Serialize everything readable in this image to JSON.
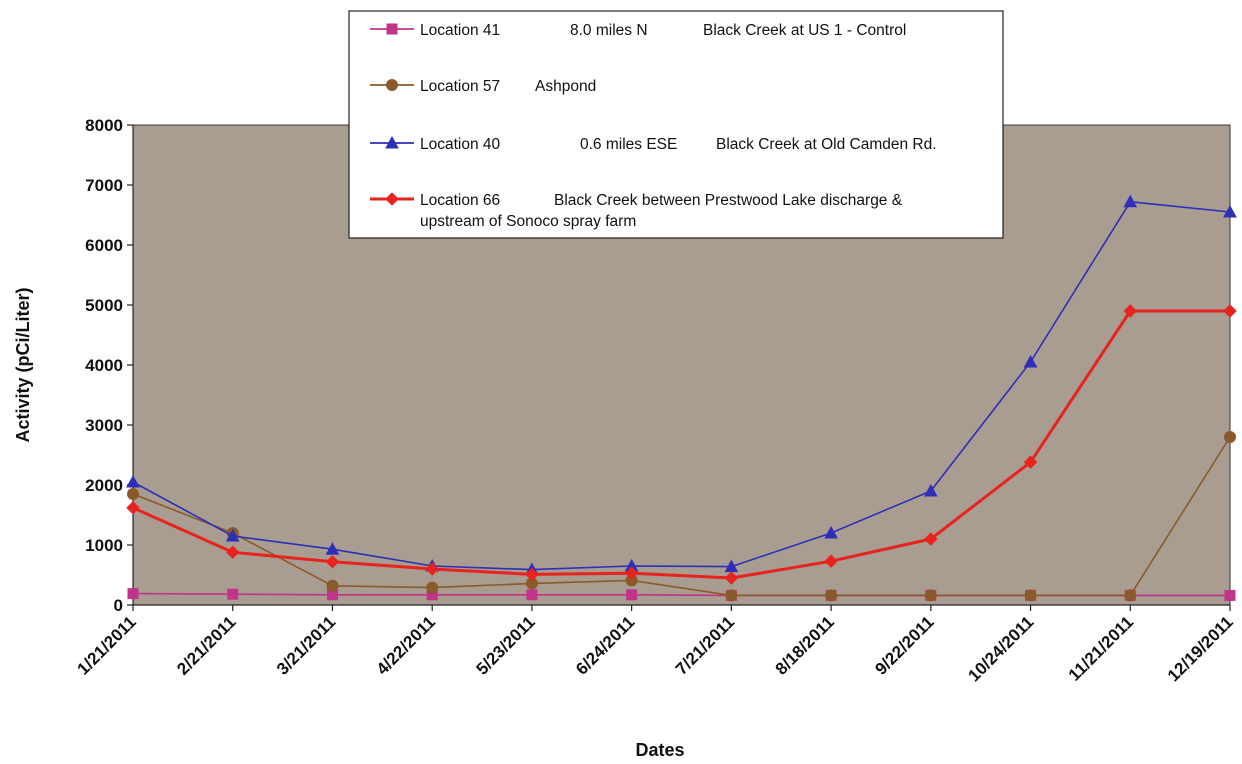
{
  "chart_data": {
    "type": "line",
    "title": "",
    "xlabel": "Dates",
    "ylabel": "Activity (pCi/Liter)",
    "ylim": [
      0,
      8000
    ],
    "yticks": [
      0,
      1000,
      2000,
      3000,
      4000,
      5000,
      6000,
      7000,
      8000
    ],
    "categories": [
      "1/21/2011",
      "2/21/2011",
      "3/21/2011",
      "4/22/2011",
      "5/23/2011",
      "6/24/2011",
      "7/21/2011",
      "8/18/2011",
      "9/22/2011",
      "10/24/2011",
      "11/21/2011",
      "12/19/2011"
    ],
    "grid": false,
    "legend_position": "top",
    "plot_background": "#a89d90",
    "series": [
      {
        "name": "Location 41",
        "legend_cols": [
          "Location 41",
          "8.0 miles N",
          "Black Creek at US 1 - Control"
        ],
        "color": "#c0348a",
        "marker": "square",
        "values": [
          190,
          180,
          170,
          170,
          170,
          170,
          160,
          160,
          160,
          160,
          160,
          160
        ]
      },
      {
        "name": "Location 57",
        "legend_cols": [
          "Location 57",
          "Ashpond"
        ],
        "color": "#8b5a2b",
        "marker": "circle",
        "values": [
          1850,
          1200,
          320,
          290,
          360,
          410,
          160,
          160,
          160,
          160,
          160,
          2800
        ]
      },
      {
        "name": "Location 40",
        "legend_cols": [
          "Location 40",
          "0.6 miles ESE",
          "Black Creek at Old Camden Rd."
        ],
        "color": "#2e2eb8",
        "marker": "triangle",
        "values": [
          2050,
          1150,
          930,
          650,
          590,
          650,
          640,
          1200,
          1900,
          4050,
          6720,
          6550
        ]
      },
      {
        "name": "Location 66",
        "legend_cols": [
          "Location 66",
          "Black Creek between Prestwood Lake discharge &"
        ],
        "legend_line2": "upstream of Sonoco spray farm",
        "color": "#e8231e",
        "marker": "diamond",
        "values": [
          1620,
          880,
          720,
          600,
          510,
          530,
          450,
          730,
          1100,
          2380,
          4900,
          4900
        ]
      }
    ]
  }
}
